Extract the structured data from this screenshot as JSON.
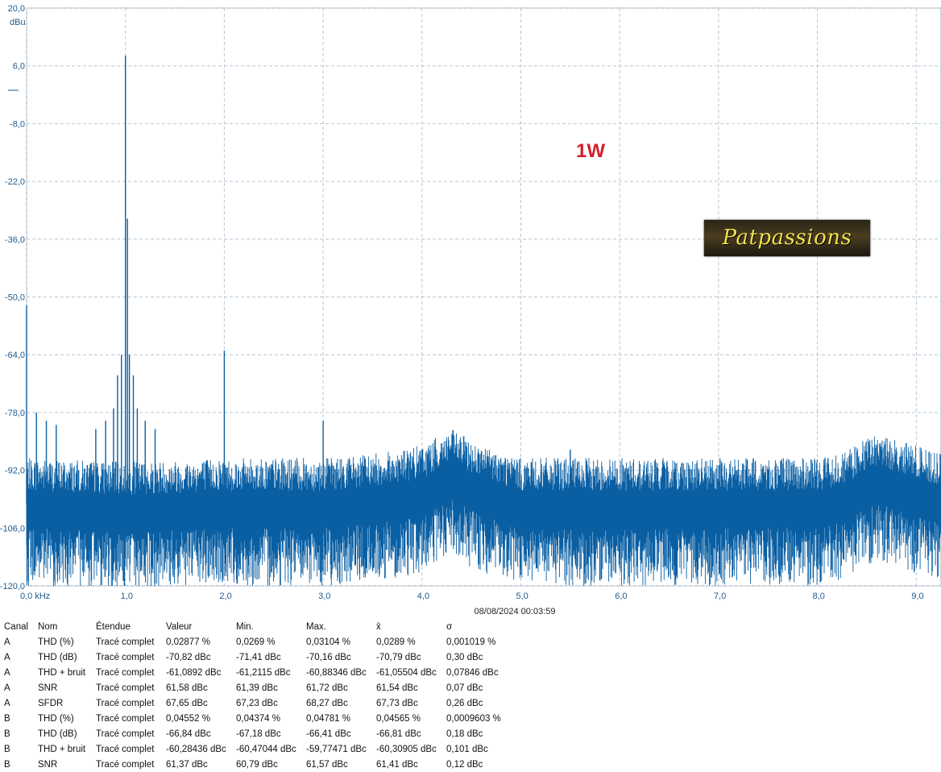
{
  "chart_data": {
    "type": "line",
    "ylabel": "dBu",
    "xunit": "kHz",
    "ylim": [
      -120,
      20
    ],
    "xlim": [
      0,
      9.25
    ],
    "y_ticks": [
      "20,0",
      "6,0",
      "-8,0",
      "-22,0",
      "-36,0",
      "-50,0",
      "-64,0",
      "-78,0",
      "-92,0",
      "-106,0",
      "-120,0"
    ],
    "y_tick_values": [
      20,
      6,
      -8,
      -22,
      -36,
      -50,
      -64,
      -78,
      -92,
      -106,
      -120
    ],
    "x_ticks": [
      "0,0 kHz",
      "1,0",
      "2,0",
      "3,0",
      "4,0",
      "5,0",
      "6,0",
      "7,0",
      "8,0",
      "9,0"
    ],
    "x_tick_values": [
      0,
      1,
      2,
      3,
      4,
      5,
      6,
      7,
      8,
      9
    ],
    "grid": true,
    "timestamp": "08/08/2024 00:03:59",
    "annotation": "1W",
    "series": [
      {
        "color": "#0a5fa3",
        "noise_floor": [
          [
            0,
            -100
          ],
          [
            1,
            -101
          ],
          [
            2,
            -100
          ],
          [
            3,
            -100
          ],
          [
            3.5,
            -99
          ],
          [
            4,
            -97
          ],
          [
            4.3,
            -93
          ],
          [
            4.6,
            -97
          ],
          [
            5,
            -100
          ],
          [
            6,
            -100
          ],
          [
            7,
            -100
          ],
          [
            8,
            -100
          ],
          [
            8.3,
            -98
          ],
          [
            8.6,
            -94
          ],
          [
            9.0,
            -97
          ],
          [
            9.25,
            -99
          ]
        ],
        "peaks": [
          [
            0.0,
            -52
          ],
          [
            1.0,
            8.5
          ],
          [
            1.02,
            -31
          ],
          [
            2.0,
            -63
          ],
          [
            3.0,
            -80
          ],
          [
            4.0,
            -87
          ],
          [
            5.5,
            -87
          ],
          [
            0.96,
            -64
          ],
          [
            1.04,
            -64
          ],
          [
            0.92,
            -69
          ],
          [
            1.08,
            -69
          ],
          [
            0.88,
            -77
          ],
          [
            1.12,
            -77
          ],
          [
            0.8,
            -80
          ],
          [
            1.2,
            -80
          ],
          [
            0.7,
            -82
          ],
          [
            1.3,
            -82
          ],
          [
            0.1,
            -78
          ],
          [
            0.2,
            -80
          ],
          [
            0.3,
            -81
          ]
        ]
      }
    ]
  },
  "logo_text": "Patpassions",
  "stats": {
    "headers": [
      "Canal",
      "Nom",
      "Étendue",
      "Valeur",
      "Min.",
      "Max.",
      "x̄",
      "σ"
    ],
    "rows": [
      [
        "A",
        "THD (%)",
        "Tracé complet",
        "0,02877 %",
        "0,0269 %",
        "0,03104 %",
        "0,0289 %",
        "0,001019 %"
      ],
      [
        "A",
        "THD (dB)",
        "Tracé complet",
        "-70,82 dBc",
        "-71,41 dBc",
        "-70,16 dBc",
        "-70,79 dBc",
        "0,30 dBc"
      ],
      [
        "A",
        "THD + bruit",
        "Tracé complet",
        "-61,0892 dBc",
        "-61,2115 dBc",
        "-60,88346 dBc",
        "-61,05504 dBc",
        "0,07846 dBc"
      ],
      [
        "A",
        "SNR",
        "Tracé complet",
        "61,58 dBc",
        "61,39 dBc",
        "61,72 dBc",
        "61,54 dBc",
        "0,07 dBc"
      ],
      [
        "A",
        "SFDR",
        "Tracé complet",
        "67,65 dBc",
        "67,23 dBc",
        "68,27 dBc",
        "67,73 dBc",
        "0,26 dBc"
      ],
      [
        "B",
        "THD (%)",
        "Tracé complet",
        "0,04552 %",
        "0,04374 %",
        "0,04781 %",
        "0,04565 %",
        "0,0009603 %"
      ],
      [
        "B",
        "THD (dB)",
        "Tracé complet",
        "-66,84 dBc",
        "-67,18 dBc",
        "-66,41 dBc",
        "-66,81 dBc",
        "0,18 dBc"
      ],
      [
        "B",
        "THD + bruit",
        "Tracé complet",
        "-60,28436 dBc",
        "-60,47044 dBc",
        "-59,77471 dBc",
        "-60,30905 dBc",
        "0,101 dBc"
      ],
      [
        "B",
        "SNR",
        "Tracé complet",
        "61,37 dBc",
        "60,79 dBc",
        "61,57 dBc",
        "61,41 dBc",
        "0,12 dBc"
      ]
    ]
  }
}
